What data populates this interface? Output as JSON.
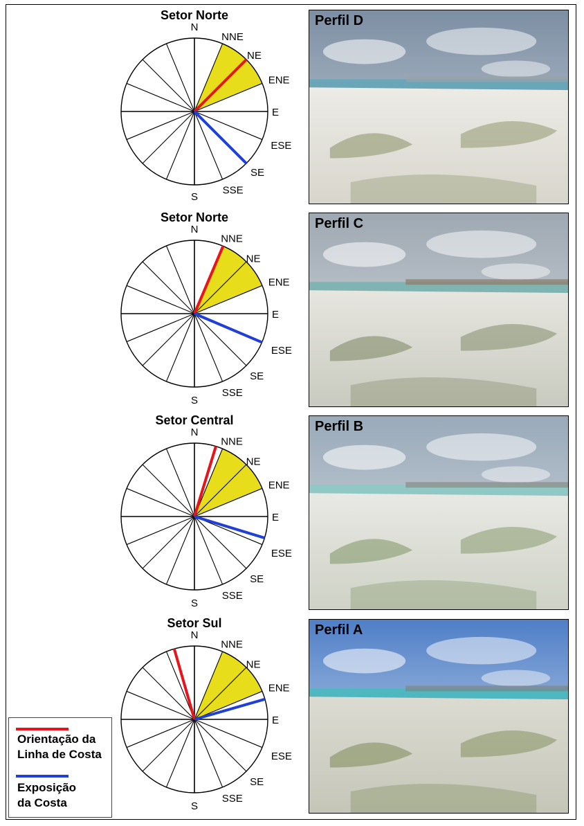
{
  "panels": [
    {
      "title": "Setor Norte",
      "photo_label": "Perfil D",
      "coast_orientation_deg": 45,
      "coast_exposure_deg": 135,
      "sector_from_deg": 22.5,
      "sector_to_deg": 67.5,
      "label_positions": "a"
    },
    {
      "title": "Setor Norte",
      "photo_label": "Perfil C",
      "coast_orientation_deg": 23,
      "coast_exposure_deg": 113,
      "sector_from_deg": 22.5,
      "sector_to_deg": 67.5,
      "label_positions": "b"
    },
    {
      "title": "Setor Central",
      "photo_label": "Perfil B",
      "coast_orientation_deg": 17,
      "coast_exposure_deg": 107,
      "sector_from_deg": 22.5,
      "sector_to_deg": 67.5,
      "label_positions": "b"
    },
    {
      "title": "Setor Sul",
      "photo_label": "Perfil A",
      "coast_orientation_deg": -16,
      "coast_exposure_deg": 74,
      "sector_from_deg": 22.5,
      "sector_to_deg": 67.5,
      "label_positions": "b"
    }
  ],
  "directions": {
    "N": "N",
    "NNE": "NNE",
    "NE": "NE",
    "ENE": "ENE",
    "E": "E",
    "ESE": "ESE",
    "SE": "SE",
    "SSE": "SSE",
    "S": "S"
  },
  "legend": {
    "orientation_line1": "Orientação da",
    "orientation_line2": "Linha de Costa",
    "exposure_line1": "Exposição",
    "exposure_line2": "da Costa"
  },
  "colors": {
    "orientation": "#e8141c",
    "exposure": "#1f3fd6",
    "sector_fill": "#e8dd1a"
  }
}
